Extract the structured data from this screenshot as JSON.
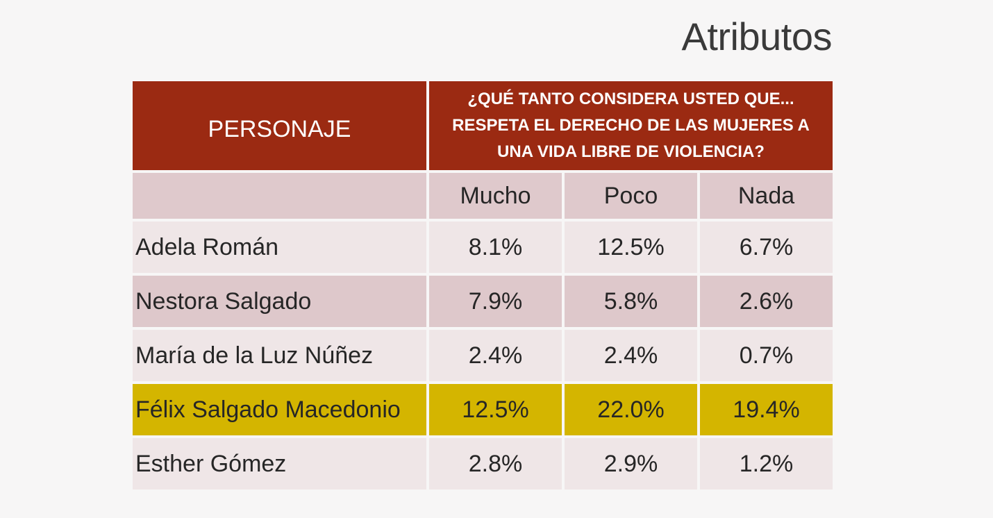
{
  "title": "Atributos",
  "chart_data": {
    "type": "table",
    "header": {
      "personaje": "PERSONAJE",
      "question": "¿QUÉ TANTO CONSIDERA USTED QUE... RESPETA EL DERECHO DE LAS MUJERES A UNA VIDA LIBRE DE VIOLENCIA?"
    },
    "columns": [
      "Mucho",
      "Poco",
      "Nada"
    ],
    "rows": [
      {
        "name": "Adela Román",
        "values": [
          "8.1%",
          "12.5%",
          "6.7%"
        ]
      },
      {
        "name": "Nestora Salgado",
        "values": [
          "7.9%",
          "5.8%",
          "2.6%"
        ]
      },
      {
        "name": "María de la Luz Núñez",
        "values": [
          "2.4%",
          "2.4%",
          "0.7%"
        ]
      },
      {
        "name": "Félix Salgado Macedonio",
        "values": [
          "12.5%",
          "22.0%",
          "19.4%"
        ]
      },
      {
        "name": "Esther Gómez",
        "values": [
          "2.8%",
          "2.9%",
          "1.2%"
        ]
      }
    ],
    "highlight_color": "#d4b500",
    "header_color": "#9b2a12"
  }
}
